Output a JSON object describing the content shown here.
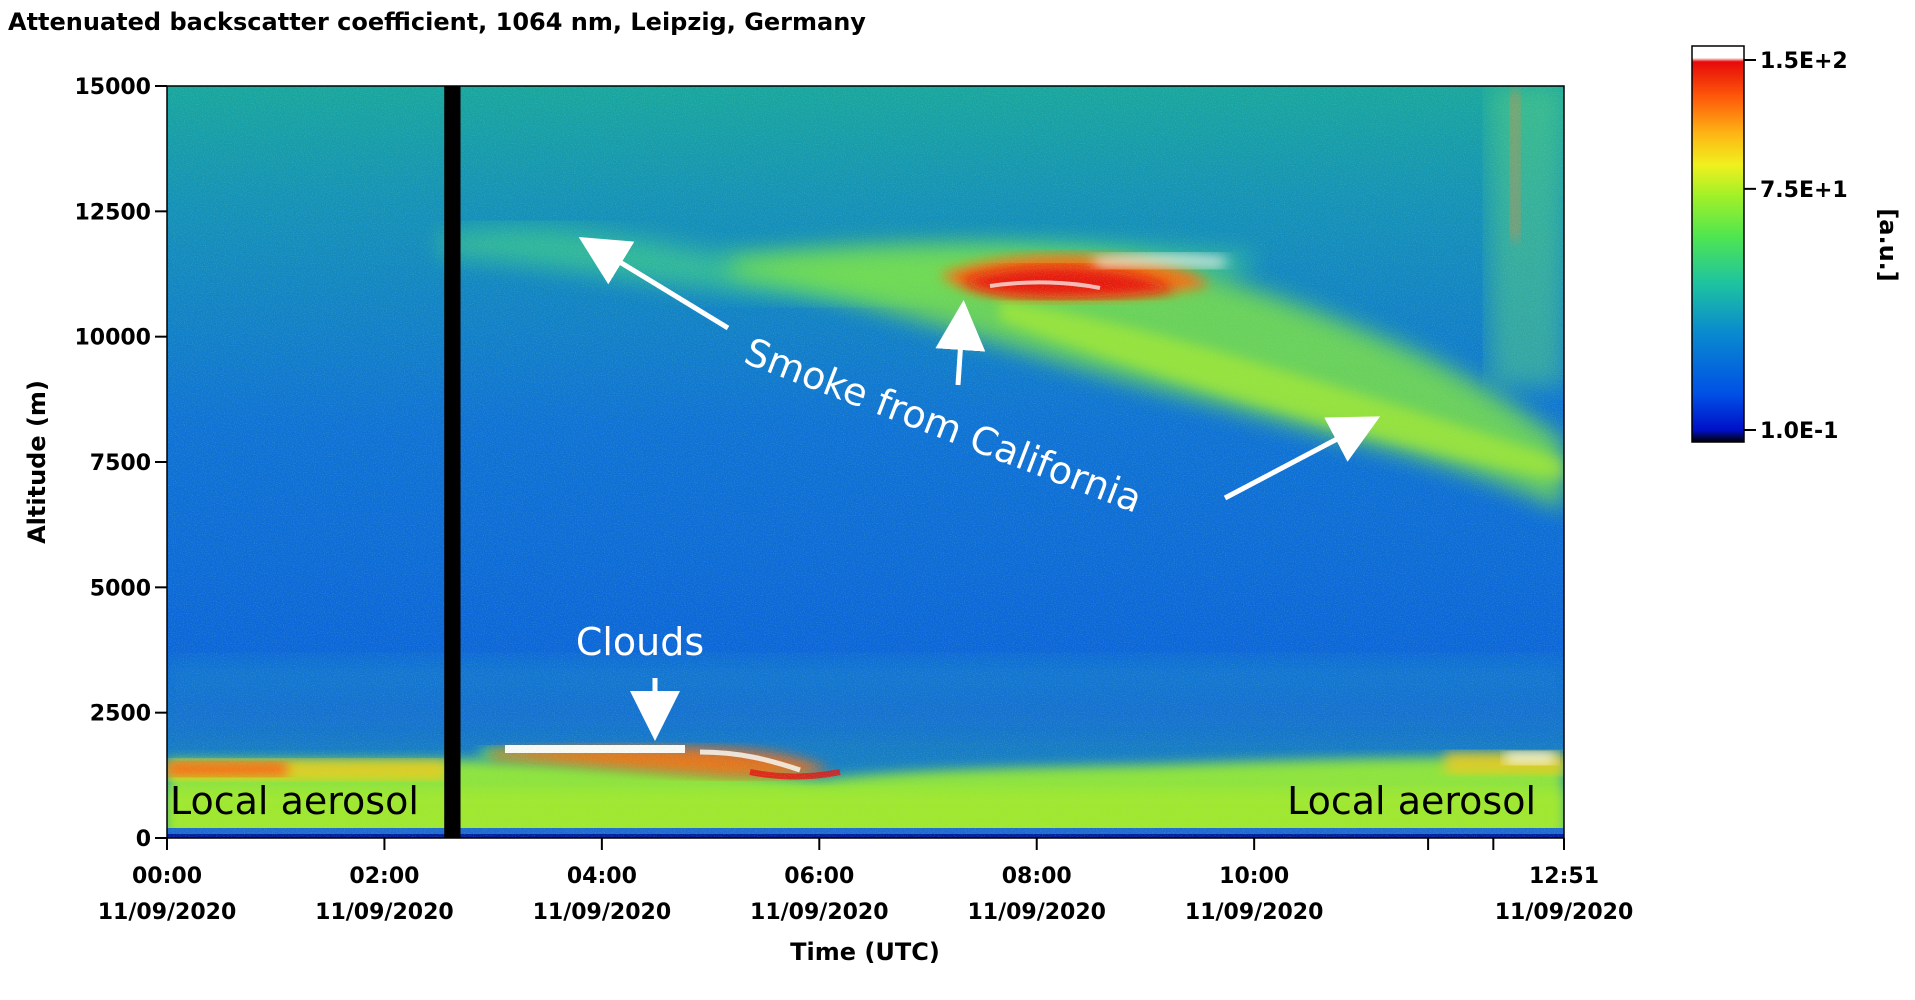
{
  "chart_data": {
    "type": "heatmap",
    "title": "Attenuated backscatter coefficient, 1064 nm, Leipzig, Germany",
    "xlabel": "Time (UTC)",
    "ylabel": "Altitude (m)",
    "xlim_hours": [
      0,
      12.85
    ],
    "ylim": [
      0,
      15000
    ],
    "y_ticks": [
      {
        "value": 0,
        "label": "0"
      },
      {
        "value": 2500,
        "label": "2500"
      },
      {
        "value": 5000,
        "label": "5000"
      },
      {
        "value": 7500,
        "label": "7500"
      },
      {
        "value": 10000,
        "label": "10000"
      },
      {
        "value": 12500,
        "label": "12500"
      },
      {
        "value": 15000,
        "label": "15000"
      }
    ],
    "x_ticks": [
      {
        "hour": 0,
        "time": "00:00",
        "date": "11/09/2020"
      },
      {
        "hour": 2,
        "time": "02:00",
        "date": "11/09/2020"
      },
      {
        "hour": 4,
        "time": "04:00",
        "date": "11/09/2020"
      },
      {
        "hour": 6,
        "time": "06:00",
        "date": "11/09/2020"
      },
      {
        "hour": 8,
        "time": "08:00",
        "date": "11/09/2020"
      },
      {
        "hour": 10,
        "time": "10:00",
        "date": "11/09/2020"
      },
      {
        "hour": 12.85,
        "time": "12:51",
        "date": "11/09/2020"
      }
    ],
    "colorbar": {
      "unit": "[a.u.]",
      "labels": [
        {
          "value": 150,
          "label": "1.5E+2"
        },
        {
          "value": 75,
          "label": "7.5E+1"
        },
        {
          "value": 0.1,
          "label": "1.0E-1"
        }
      ],
      "colors": [
        "#000000",
        "#0010c8",
        "#0050e6",
        "#0a8ccd",
        "#1ec3a0",
        "#50e650",
        "#a0f028",
        "#f0f01e",
        "#ffb414",
        "#ff5a0a",
        "#e60a0a",
        "#ffffff"
      ]
    },
    "data_gap_hours": [
      2.55,
      2.7
    ],
    "annotations": {
      "smoke": "Smoke from California",
      "clouds": "Clouds",
      "local_left": "Local aerosol",
      "local_right": "Local aerosol"
    }
  }
}
